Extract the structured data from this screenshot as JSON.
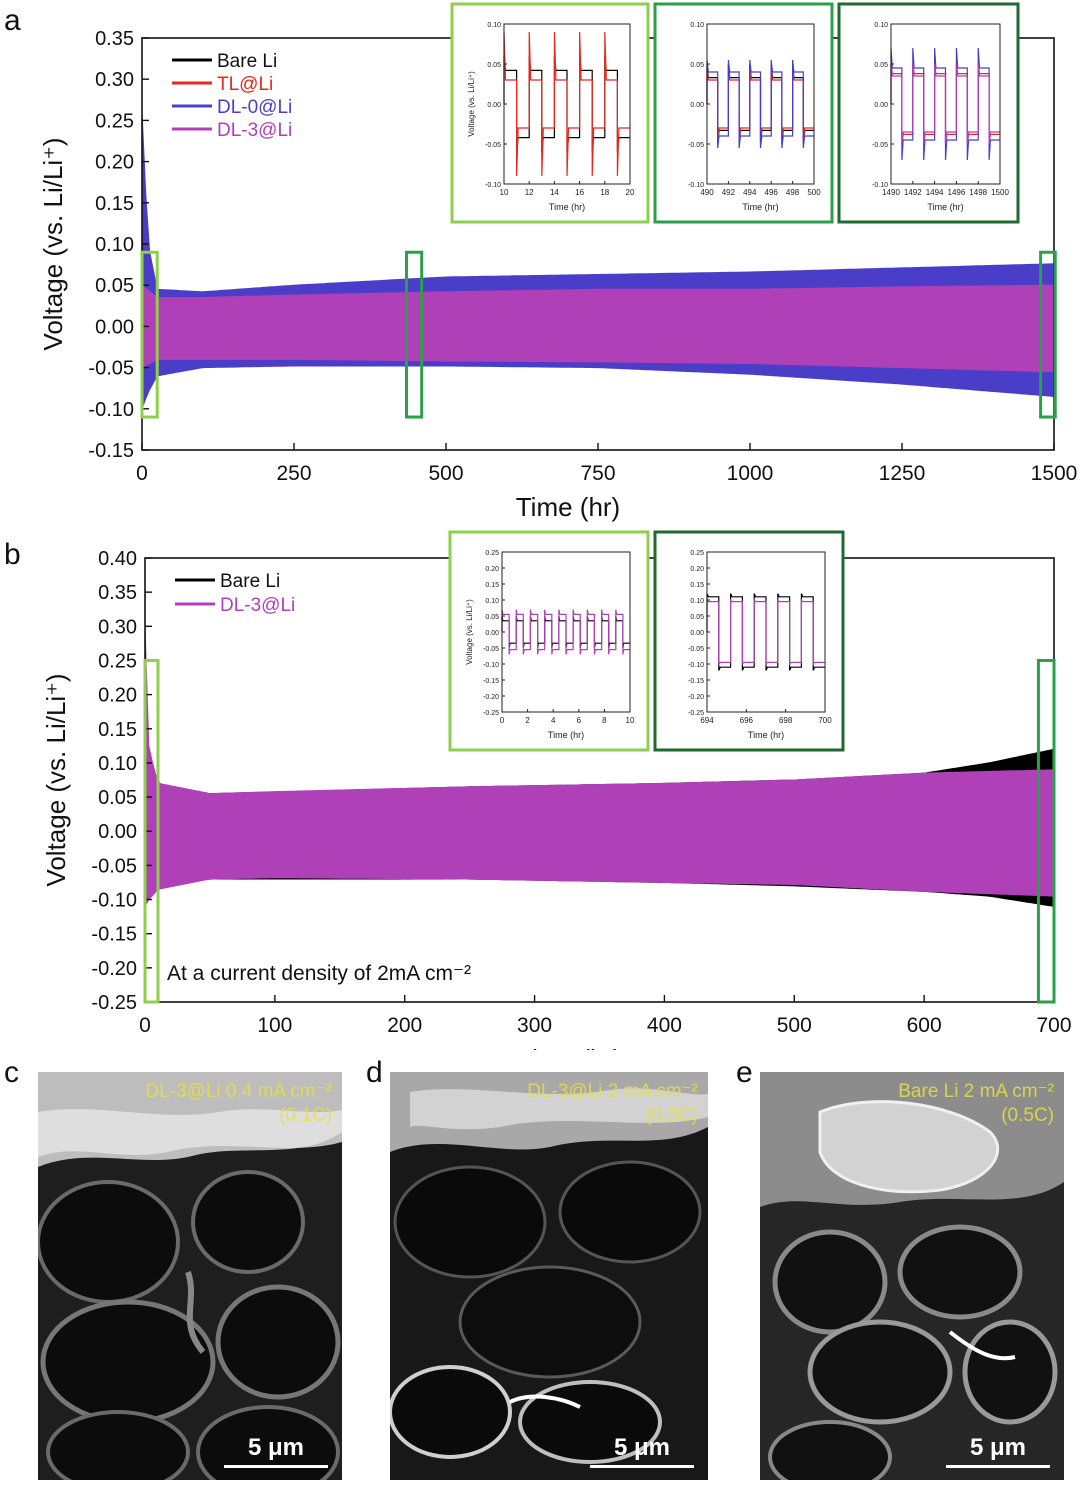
{
  "panels": {
    "a": "a",
    "b": "b",
    "c": "c",
    "d": "d",
    "e": "e"
  },
  "chart_data": [
    {
      "id": "a",
      "type": "line",
      "xlabel": "Time (hr)",
      "ylabel": "Voltage (vs. Li/Li⁺)",
      "xlim": [
        0,
        1500
      ],
      "ylim": [
        -0.15,
        0.35
      ],
      "xticks": [
        "0",
        "250",
        "500",
        "750",
        "1000",
        "1250",
        "1500"
      ],
      "yticks": [
        "0.35",
        "0.30",
        "0.25",
        "0.20",
        "0.15",
        "0.10",
        "0.05",
        "0.00",
        "-0.05",
        "-0.10",
        "-0.15"
      ],
      "legend_position": "top-left",
      "series": [
        {
          "name": "Bare Li",
          "color": "#000000",
          "x": [
            0,
            25,
            100,
            250,
            500,
            750,
            960,
            1000
          ],
          "upper": [
            0.06,
            0.02,
            0.025,
            0.028,
            0.03,
            0.033,
            0.04,
            0.03
          ],
          "lower": [
            -0.04,
            -0.035,
            -0.04,
            -0.04,
            -0.04,
            -0.043,
            -0.05,
            -0.045
          ]
        },
        {
          "name": "TL@Li",
          "color": "#e8281e",
          "x": [
            0,
            10,
            25,
            100,
            250,
            500,
            750,
            1000,
            1250,
            1500
          ],
          "upper": [
            0.2,
            0.1,
            0.04,
            0.03,
            0.033,
            0.038,
            0.04,
            0.043,
            0.05,
            0.058
          ],
          "lower": [
            -0.09,
            -0.075,
            -0.06,
            -0.048,
            -0.045,
            -0.045,
            -0.045,
            -0.05,
            -0.058,
            -0.065
          ]
        },
        {
          "name": "DL-0@Li",
          "color": "#4a3ec8",
          "x": [
            0,
            10,
            25,
            100,
            250,
            500,
            750,
            1000,
            1250,
            1500
          ],
          "upper": [
            0.26,
            0.1,
            0.045,
            0.042,
            0.05,
            0.06,
            0.063,
            0.066,
            0.071,
            0.076
          ],
          "lower": [
            -0.1,
            -0.08,
            -0.06,
            -0.05,
            -0.048,
            -0.048,
            -0.05,
            -0.058,
            -0.07,
            -0.085
          ]
        },
        {
          "name": "DL-3@Li",
          "color": "#b040b8",
          "x": [
            0,
            25,
            100,
            250,
            500,
            750,
            1000,
            1250,
            1500
          ],
          "upper": [
            0.05,
            0.035,
            0.035,
            0.038,
            0.042,
            0.045,
            0.045,
            0.048,
            0.05
          ],
          "lower": [
            -0.05,
            -0.04,
            -0.04,
            -0.04,
            -0.042,
            -0.043,
            -0.045,
            -0.05,
            -0.055
          ]
        }
      ],
      "highlight_boxes": [
        {
          "x": [
            0,
            25
          ],
          "y": [
            -0.11,
            0.09
          ],
          "color": "#8ed04c"
        },
        {
          "x": [
            435,
            460
          ],
          "y": [
            -0.11,
            0.09
          ],
          "color": "#2aa048"
        },
        {
          "x": [
            1478,
            1502
          ],
          "y": [
            -0.11,
            0.09
          ],
          "color": "#2aa048"
        }
      ],
      "insets": [
        {
          "xlabel": "Time (hr)",
          "ylabel": "Voltage (vs. Li/Li⁺)",
          "xlim": [
            10,
            20
          ],
          "ylim": [
            -0.1,
            0.1
          ],
          "xticks": [
            "10",
            "12",
            "14",
            "16",
            "18",
            "20"
          ],
          "yticks": [
            "0.10",
            "0.05",
            "0.00",
            "-0.05",
            "-0.10"
          ],
          "border": "#8ed04c",
          "cycles": 5,
          "traces": [
            {
              "color": "#000000",
              "amp": 0.042,
              "spike": 0.06
            },
            {
              "color": "#e8281e",
              "amp": 0.03,
              "spike": 0.09
            }
          ]
        },
        {
          "xlabel": "Time (hr)",
          "xlim": [
            490,
            500
          ],
          "ylim": [
            -0.1,
            0.1
          ],
          "xticks": [
            "490",
            "492",
            "494",
            "496",
            "498",
            "500"
          ],
          "yticks": [
            "0.10",
            "0.05",
            "0.00",
            "-0.05",
            "-0.10"
          ],
          "border": "#2aa048",
          "cycles": 5,
          "traces": [
            {
              "color": "#000000",
              "amp": 0.033,
              "spike": 0.05
            },
            {
              "color": "#e8281e",
              "amp": 0.03,
              "spike": 0.045
            },
            {
              "color": "#4a3ec8",
              "amp": 0.04,
              "spike": 0.055
            }
          ]
        },
        {
          "xlabel": "Time (hr)",
          "xlim": [
            1490,
            1500
          ],
          "ylim": [
            -0.1,
            0.1
          ],
          "xticks": [
            "1490",
            "1492",
            "1494",
            "1496",
            "1498",
            "1500"
          ],
          "yticks": [
            "0.10",
            "0.05",
            "0.00",
            "-0.05",
            "-0.10"
          ],
          "border": "#1e6a30",
          "cycles": 5,
          "traces": [
            {
              "color": "#e8281e",
              "amp": 0.038,
              "spike": 0.05
            },
            {
              "color": "#4a3ec8",
              "amp": 0.045,
              "spike": 0.07
            },
            {
              "color": "#b040b8",
              "amp": 0.035,
              "spike": 0.05
            }
          ]
        }
      ]
    },
    {
      "id": "b",
      "type": "line",
      "xlabel": "Time (hr)",
      "ylabel": "Voltage (vs. Li/Li⁺)",
      "xlim": [
        0,
        700
      ],
      "ylim": [
        -0.25,
        0.4
      ],
      "xticks": [
        "0",
        "100",
        "200",
        "300",
        "400",
        "500",
        "600",
        "700"
      ],
      "yticks": [
        "0.40",
        "0.35",
        "0.30",
        "0.25",
        "0.20",
        "0.15",
        "0.10",
        "0.05",
        "0.00",
        "-0.05",
        "-0.10",
        "-0.15",
        "-0.20",
        "-0.25"
      ],
      "legend_position": "top-left",
      "annotation": "At a current density of 2mA cm⁻²",
      "series": [
        {
          "name": "Bare Li",
          "color": "#000000",
          "x": [
            0,
            10,
            50,
            250,
            400,
            500,
            600,
            650,
            700
          ],
          "upper": [
            0.09,
            0.07,
            0.055,
            0.065,
            0.07,
            0.075,
            0.085,
            0.1,
            0.12
          ],
          "lower": [
            -0.08,
            -0.075,
            -0.07,
            -0.07,
            -0.075,
            -0.08,
            -0.088,
            -0.095,
            -0.11
          ]
        },
        {
          "name": "DL-3@Li",
          "color": "#b040b8",
          "x": [
            0,
            3,
            10,
            50,
            100,
            250,
            400,
            500,
            600,
            700
          ],
          "upper": [
            0.3,
            0.12,
            0.07,
            0.055,
            0.058,
            0.065,
            0.07,
            0.075,
            0.085,
            0.09
          ],
          "lower": [
            -0.11,
            -0.1,
            -0.085,
            -0.07,
            -0.068,
            -0.07,
            -0.075,
            -0.078,
            -0.088,
            -0.095
          ]
        }
      ],
      "highlight_boxes": [
        {
          "x": [
            0,
            10
          ],
          "y": [
            -0.25,
            0.25
          ],
          "color": "#8ed04c"
        },
        {
          "x": [
            688,
            700
          ],
          "y": [
            -0.25,
            0.25
          ],
          "color": "#2aa048"
        }
      ],
      "insets": [
        {
          "xlabel": "Time (hr)",
          "ylabel": "Voltage (vs. Li/Li⁺)",
          "xlim": [
            0,
            10
          ],
          "ylim": [
            -0.25,
            0.25
          ],
          "xticks": [
            "0",
            "2",
            "4",
            "6",
            "8",
            "10"
          ],
          "yticks": [
            "0.25",
            "0.20",
            "0.15",
            "0.10",
            "0.05",
            "0.00",
            "-0.05",
            "-0.10",
            "-0.15",
            "-0.20",
            "-0.25"
          ],
          "border": "#8ed04c",
          "cycles": 9,
          "traces": [
            {
              "color": "#000000",
              "amp": 0.035,
              "spike": 0.05
            },
            {
              "color": "#b040b8",
              "amp": 0.055,
              "spike": 0.07
            }
          ]
        },
        {
          "xlabel": "Time (hr)",
          "xlim": [
            694,
            700
          ],
          "ylim": [
            -0.25,
            0.25
          ],
          "xticks": [
            "694",
            "696",
            "698",
            "700"
          ],
          "yticks": [
            "0.25",
            "0.20",
            "0.15",
            "0.10",
            "0.05",
            "0.00",
            "-0.05",
            "-0.10",
            "-0.15",
            "-0.20",
            "-0.25"
          ],
          "border": "#1e6a30",
          "cycles": 5,
          "traces": [
            {
              "color": "#000000",
              "amp": 0.11,
              "spike": 0.12
            },
            {
              "color": "#b040b8",
              "amp": 0.095,
              "spike": 0.1
            }
          ]
        }
      ]
    }
  ],
  "sem": [
    {
      "id": "c",
      "label": "DL-3@Li 0.4 mA cm⁻²\n(0.1C)",
      "scale": "5 μm"
    },
    {
      "id": "d",
      "label": "DL-3@Li 2 mA cm⁻²\n(0.5C)",
      "scale": "5 μm"
    },
    {
      "id": "e",
      "label": "Bare Li 2 mA cm⁻²\n(0.5C)",
      "scale": "5 μm"
    }
  ]
}
